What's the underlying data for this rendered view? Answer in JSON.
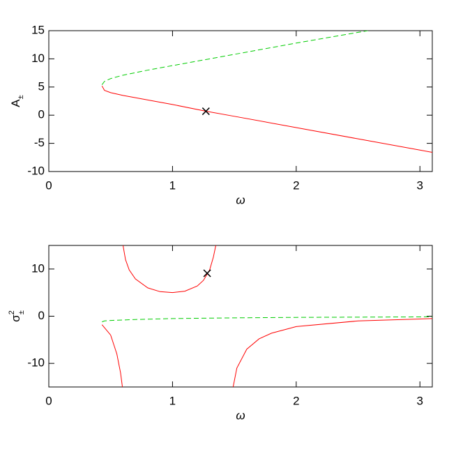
{
  "chart_data": [
    {
      "type": "line",
      "xlabel": "ω",
      "ylabel": {
        "base": "A",
        "sub": "±"
      },
      "xlim": [
        0,
        3.1
      ],
      "ylim": [
        -10,
        15
      ],
      "xticks": [
        0,
        1,
        2,
        3
      ],
      "yticks": [
        -10,
        -5,
        0,
        5,
        10,
        15
      ],
      "series": [
        {
          "color": "#ff0000",
          "style": "solid",
          "x": [
            0.43,
            0.45,
            0.5,
            0.6,
            0.8,
            1.0,
            1.27,
            1.5,
            2.0,
            2.5,
            3.0,
            3.1
          ],
          "values": [
            5.2,
            4.4,
            4.0,
            3.5,
            2.7,
            1.9,
            0.7,
            -0.2,
            -2.2,
            -4.2,
            -6.2,
            -6.6
          ]
        },
        {
          "color": "#00cc00",
          "style": "dashed",
          "x": [
            0.43,
            0.45,
            0.5,
            0.6,
            0.8,
            1.0,
            1.5,
            2.0,
            2.5,
            2.58
          ],
          "values": [
            5.4,
            6.0,
            6.5,
            7.1,
            8.0,
            8.8,
            10.8,
            12.8,
            14.7,
            15
          ]
        }
      ],
      "markers": [
        {
          "x": 1.27,
          "y": 0.7
        }
      ]
    },
    {
      "type": "line",
      "xlabel": "ω",
      "ylabel": {
        "base": "σ",
        "sup": "2",
        "sub": "±"
      },
      "xlim": [
        0,
        3.1
      ],
      "ylim": [
        -15,
        15
      ],
      "xticks": [
        0,
        1,
        2,
        3
      ],
      "yticks": [
        -10,
        0,
        10
      ],
      "series": [
        {
          "color": "#ff0000",
          "style": "solid",
          "x": [
            0.6,
            0.62,
            0.65,
            0.7,
            0.8,
            0.9,
            1.0,
            1.1,
            1.2,
            1.25,
            1.3,
            1.33,
            1.35,
            null,
            0.43,
            0.5,
            0.55,
            0.58,
            0.595,
            null,
            1.49,
            1.52,
            1.6,
            1.7,
            1.8,
            2.0,
            2.5,
            3.0,
            3.1
          ],
          "values": [
            15,
            12,
            9.8,
            7.9,
            6.0,
            5.2,
            5.0,
            5.3,
            6.4,
            7.6,
            9.8,
            12.5,
            15,
            null,
            -1.8,
            -4,
            -8,
            -12,
            -15,
            null,
            -15,
            -11,
            -7,
            -4.8,
            -3.6,
            -2.2,
            -1.0,
            -0.6,
            -0.5
          ]
        },
        {
          "color": "#00cc00",
          "style": "dashed",
          "x": [
            0.43,
            0.45,
            0.5,
            0.7,
            1.0,
            1.5,
            2.0,
            3.0,
            3.1
          ],
          "values": [
            -1.2,
            -1.0,
            -0.9,
            -0.7,
            -0.5,
            -0.35,
            -0.25,
            -0.15,
            -0.1
          ]
        }
      ],
      "markers": [
        {
          "x": 1.28,
          "y": 9.1
        }
      ]
    }
  ]
}
